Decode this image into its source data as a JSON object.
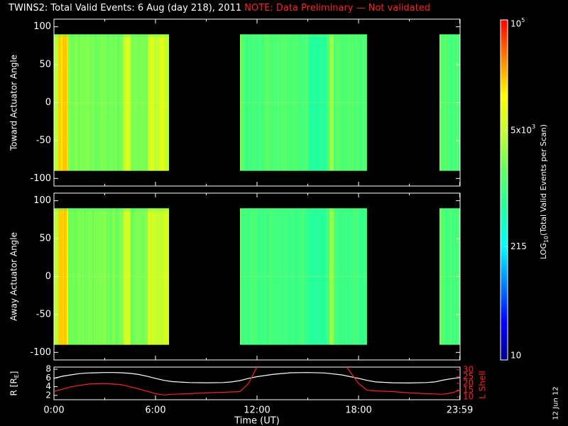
{
  "title": {
    "main": "TWINS2: Total Valid Events:  6 Aug (day 218), 2011",
    "note": "NOTE: Data Preliminary — Not validated",
    "note_color": "#ff2020"
  },
  "stamp": "12 Jun 12",
  "chart_data": [
    {
      "type": "heatmap",
      "panel": "toward",
      "ylabel": "Toward Actuator Angle",
      "ylim": [
        -110,
        110
      ],
      "yticks": [
        100,
        50,
        0,
        -50,
        -100
      ],
      "data_y_range": [
        -90,
        90
      ],
      "x_range_hours": [
        0,
        24
      ],
      "data_blocks_hours": [
        [
          0.0,
          6.8
        ],
        [
          11.0,
          18.5
        ],
        [
          22.8,
          24.0
        ]
      ]
    },
    {
      "type": "heatmap",
      "panel": "away",
      "ylabel": "Away Actuator Angle",
      "ylim": [
        -110,
        110
      ],
      "yticks": [
        100,
        50,
        0,
        -50,
        -100
      ],
      "data_y_range": [
        -90,
        90
      ],
      "x_range_hours": [
        0,
        24
      ],
      "data_blocks_hours": [
        [
          0.0,
          6.8
        ],
        [
          11.0,
          18.5
        ],
        [
          22.8,
          24.0
        ]
      ]
    },
    {
      "type": "line",
      "panel": "orbit",
      "xlabel": "Time (UT)",
      "xticks": [
        "0:00",
        "6:00",
        "12:00",
        "18:00",
        "23:59"
      ],
      "xtick_hours": [
        0,
        6,
        12,
        18,
        23.98
      ],
      "ylabel_left": "R [R",
      "ylabel_left_sub": "E",
      "ylabel_left_end": "]",
      "ylim_left": [
        1,
        8.5
      ],
      "yticks_left": [
        2,
        4,
        6,
        8
      ],
      "ylabel_right": "L Shell",
      "ylim_right": [
        8,
        32
      ],
      "yticks_right": [
        10,
        15,
        20,
        25,
        30
      ],
      "series": [
        {
          "color": "#ffffff",
          "axis": "left",
          "x": [
            0,
            0.5,
            1,
            1.5,
            2,
            2.5,
            3,
            3.5,
            4,
            4.5,
            5,
            5.5,
            6,
            6.5,
            7,
            8,
            9,
            10,
            10.5,
            11,
            11.5,
            12,
            13,
            14,
            15,
            16,
            17,
            18,
            18.5,
            19,
            20,
            21,
            22,
            22.5,
            23,
            23.5,
            24
          ],
          "y": [
            5.9,
            6.4,
            6.7,
            7.0,
            7.15,
            7.2,
            7.25,
            7.25,
            7.2,
            7.05,
            6.8,
            6.4,
            5.9,
            5.45,
            5.15,
            4.95,
            4.9,
            4.95,
            5.1,
            5.4,
            5.9,
            6.3,
            6.85,
            7.2,
            7.25,
            7.15,
            6.7,
            5.9,
            5.45,
            5.1,
            4.9,
            4.85,
            4.95,
            5.1,
            5.5,
            5.85,
            6.1
          ]
        },
        {
          "color": "#ff2020",
          "axis": "right",
          "x": [
            0,
            1,
            2,
            3,
            4,
            5,
            6,
            6.5,
            7,
            8,
            9,
            10,
            11,
            11.5,
            12
          ],
          "y": [
            14,
            17.5,
            19.5,
            20,
            19,
            16,
            12.5,
            11.5,
            12,
            12.5,
            13,
            13.5,
            14,
            20,
            32
          ]
        },
        {
          "color": "#ff2020",
          "axis": "right",
          "x": [
            17.3,
            18,
            18.5,
            19,
            20,
            21,
            22,
            23,
            23.5,
            24
          ],
          "y": [
            32,
            20,
            15,
            14.5,
            14,
            13,
            12.5,
            12,
            13,
            15
          ]
        }
      ]
    }
  ],
  "colorbar": {
    "label": "LOG",
    "label_sub": "10",
    "label_rest": "(Total Valid  Events per Scan)",
    "ticks": [
      {
        "value": 10,
        "label": "10"
      },
      {
        "value": 215,
        "label": "215"
      },
      {
        "value": 5000,
        "label": "5x10",
        "sup": "3"
      },
      {
        "value": 100000,
        "label": "10",
        "sup": "5"
      }
    ],
    "range": [
      10,
      100000
    ],
    "stops": [
      "#00008c",
      "#0000ff",
      "#0080ff",
      "#00ffff",
      "#20ffa0",
      "#60ff60",
      "#c0ff30",
      "#ffff00",
      "#ff8000",
      "#ff0000"
    ]
  }
}
